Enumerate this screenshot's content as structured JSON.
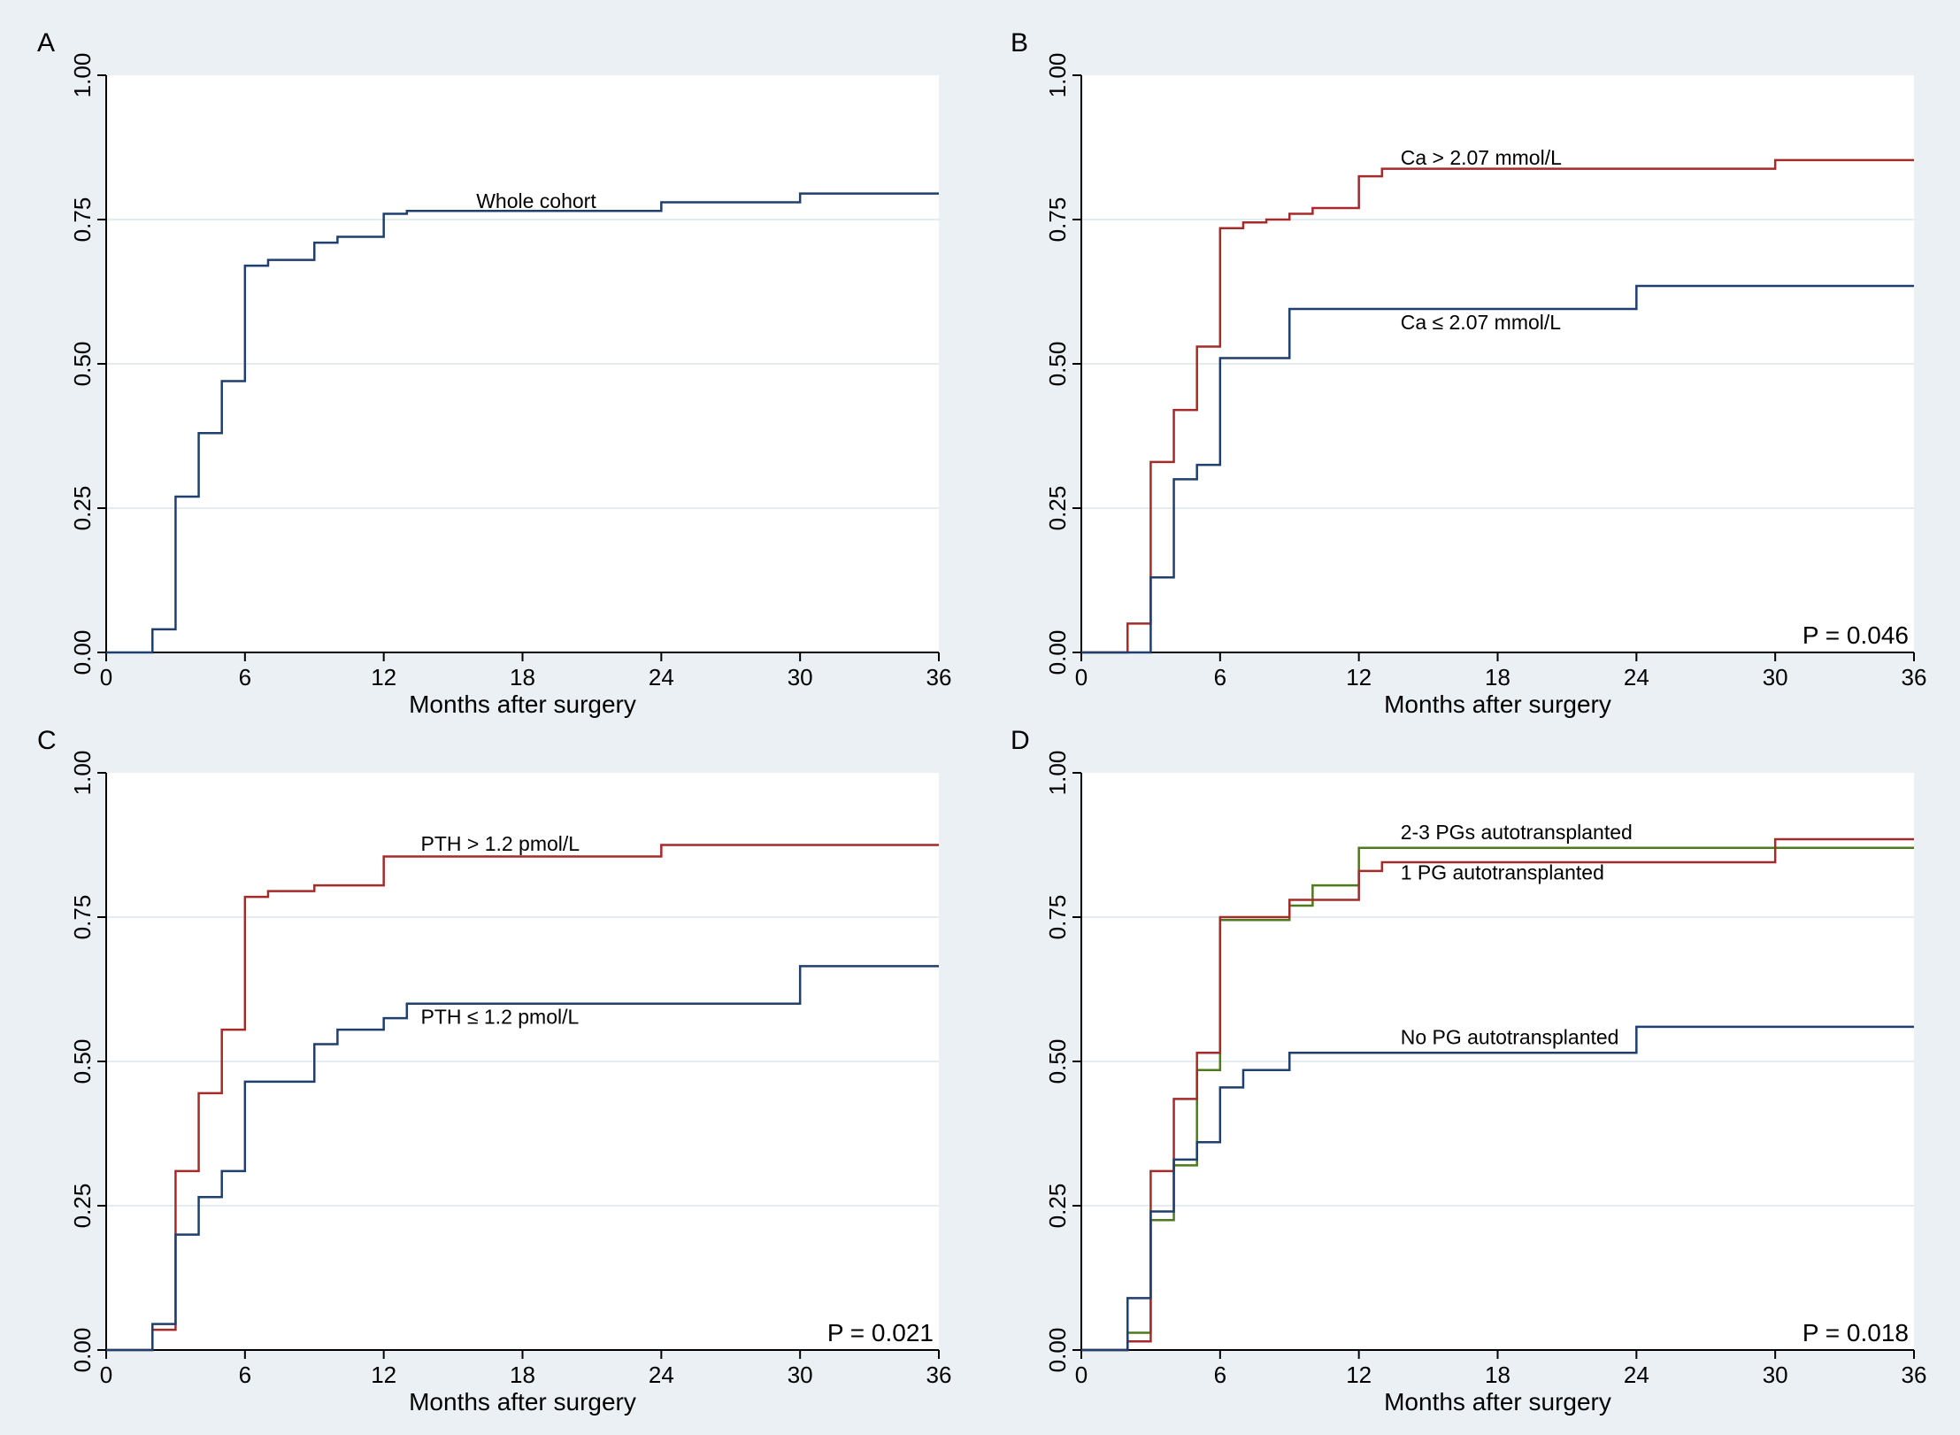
{
  "colors": {
    "background": "#eaf0f3",
    "plot": "#ffffff",
    "grid": "#dce6ea",
    "blue": "#1f3f6e",
    "red": "#a52a2a",
    "green": "#4e7a1e"
  },
  "chart_data": [
    {
      "type": "line",
      "letter": "A",
      "xlabel": "Months after surgery",
      "ylabel": "",
      "xlim": [
        0,
        36
      ],
      "ylim": [
        0,
        1
      ],
      "xticks": [
        "0",
        "6",
        "12",
        "18",
        "24",
        "30",
        "36"
      ],
      "yticks": [
        "0.00",
        "0.25",
        "0.50",
        "0.75",
        "1.00"
      ],
      "p_value": "",
      "series": [
        {
          "name": "Whole cohort",
          "color": "#1f3f6e",
          "label_at": [
            16,
            0.77
          ],
          "x": [
            0,
            2,
            3,
            4,
            5,
            6,
            7,
            9,
            10,
            12,
            13,
            24,
            30,
            36
          ],
          "y": [
            0,
            0.04,
            0.27,
            0.38,
            0.47,
            0.67,
            0.68,
            0.71,
            0.72,
            0.76,
            0.765,
            0.78,
            0.795,
            0.795
          ]
        }
      ]
    },
    {
      "type": "line",
      "letter": "B",
      "xlabel": "Months after surgery",
      "ylabel": "",
      "xlim": [
        0,
        36
      ],
      "ylim": [
        0,
        1
      ],
      "xticks": [
        "0",
        "6",
        "12",
        "18",
        "24",
        "30",
        "36"
      ],
      "yticks": [
        "0.00",
        "0.25",
        "0.50",
        "0.75",
        "1.00"
      ],
      "p_value": "P = 0.046",
      "series": [
        {
          "name": "Ca > 2.07 mmol/L",
          "color": "#a52a2a",
          "label_at": [
            13.8,
            0.845
          ],
          "x": [
            0,
            2,
            3,
            4,
            5,
            6,
            7,
            8,
            9,
            10,
            12,
            13,
            30,
            36
          ],
          "y": [
            0,
            0.05,
            0.33,
            0.42,
            0.53,
            0.735,
            0.745,
            0.75,
            0.76,
            0.77,
            0.825,
            0.838,
            0.853,
            0.853
          ]
        },
        {
          "name": "Ca ≤ 2.07 mmol/L",
          "color": "#1f3f6e",
          "label_at": [
            13.8,
            0.56
          ],
          "x": [
            0,
            3,
            4,
            5,
            6,
            9,
            24,
            36
          ],
          "y": [
            0,
            0.13,
            0.3,
            0.325,
            0.51,
            0.595,
            0.635,
            0.635
          ]
        }
      ]
    },
    {
      "type": "line",
      "letter": "C",
      "xlabel": "Months after surgery",
      "ylabel": "",
      "xlim": [
        0,
        36
      ],
      "ylim": [
        0,
        1
      ],
      "xticks": [
        "0",
        "6",
        "12",
        "18",
        "24",
        "30",
        "36"
      ],
      "yticks": [
        "0.00",
        "0.25",
        "0.50",
        "0.75",
        "1.00"
      ],
      "p_value": "P = 0.021",
      "series": [
        {
          "name": "PTH > 1.2 pmol/L",
          "color": "#a52a2a",
          "label_at": [
            13.6,
            0.865
          ],
          "x": [
            0,
            2,
            3,
            4,
            5,
            6,
            7,
            9,
            12,
            24,
            36
          ],
          "y": [
            0,
            0.035,
            0.31,
            0.445,
            0.555,
            0.785,
            0.795,
            0.805,
            0.855,
            0.875,
            0.875
          ]
        },
        {
          "name": "PTH ≤ 1.2 pmol/L",
          "color": "#1f3f6e",
          "label_at": [
            13.6,
            0.565
          ],
          "x": [
            0,
            2,
            3,
            4,
            5,
            6,
            9,
            10,
            12,
            13,
            30,
            36
          ],
          "y": [
            0,
            0.045,
            0.2,
            0.265,
            0.31,
            0.465,
            0.53,
            0.555,
            0.575,
            0.6,
            0.665,
            0.665
          ]
        }
      ]
    },
    {
      "type": "line",
      "letter": "D",
      "xlabel": "Months after surgery",
      "ylabel": "",
      "xlim": [
        0,
        36
      ],
      "ylim": [
        0,
        1
      ],
      "xticks": [
        "0",
        "6",
        "12",
        "18",
        "24",
        "30",
        "36"
      ],
      "yticks": [
        "0.00",
        "0.25",
        "0.50",
        "0.75",
        "1.00"
      ],
      "p_value": "P = 0.018",
      "series": [
        {
          "name": "2-3 PGs autotransplanted",
          "color": "#4e7a1e",
          "label_at": [
            13.8,
            0.885
          ],
          "x": [
            0,
            2,
            3,
            4,
            5,
            6,
            9,
            10,
            12,
            36
          ],
          "y": [
            0,
            0.03,
            0.225,
            0.32,
            0.485,
            0.745,
            0.77,
            0.805,
            0.87,
            0.87
          ]
        },
        {
          "name": "1 PG autotransplanted",
          "color": "#a52a2a",
          "label_at": [
            13.8,
            0.815
          ],
          "x": [
            0,
            2,
            3,
            4,
            5,
            6,
            9,
            12,
            13,
            30,
            36
          ],
          "y": [
            0,
            0.015,
            0.31,
            0.435,
            0.515,
            0.75,
            0.78,
            0.83,
            0.845,
            0.885,
            0.885
          ]
        },
        {
          "name": "No PG autotransplanted",
          "color": "#1f3f6e",
          "label_at": [
            13.8,
            0.53
          ],
          "x": [
            0,
            2,
            3,
            4,
            5,
            6,
            7,
            9,
            24,
            36
          ],
          "y": [
            0,
            0.09,
            0.24,
            0.33,
            0.36,
            0.455,
            0.485,
            0.515,
            0.56,
            0.56
          ]
        }
      ]
    }
  ]
}
